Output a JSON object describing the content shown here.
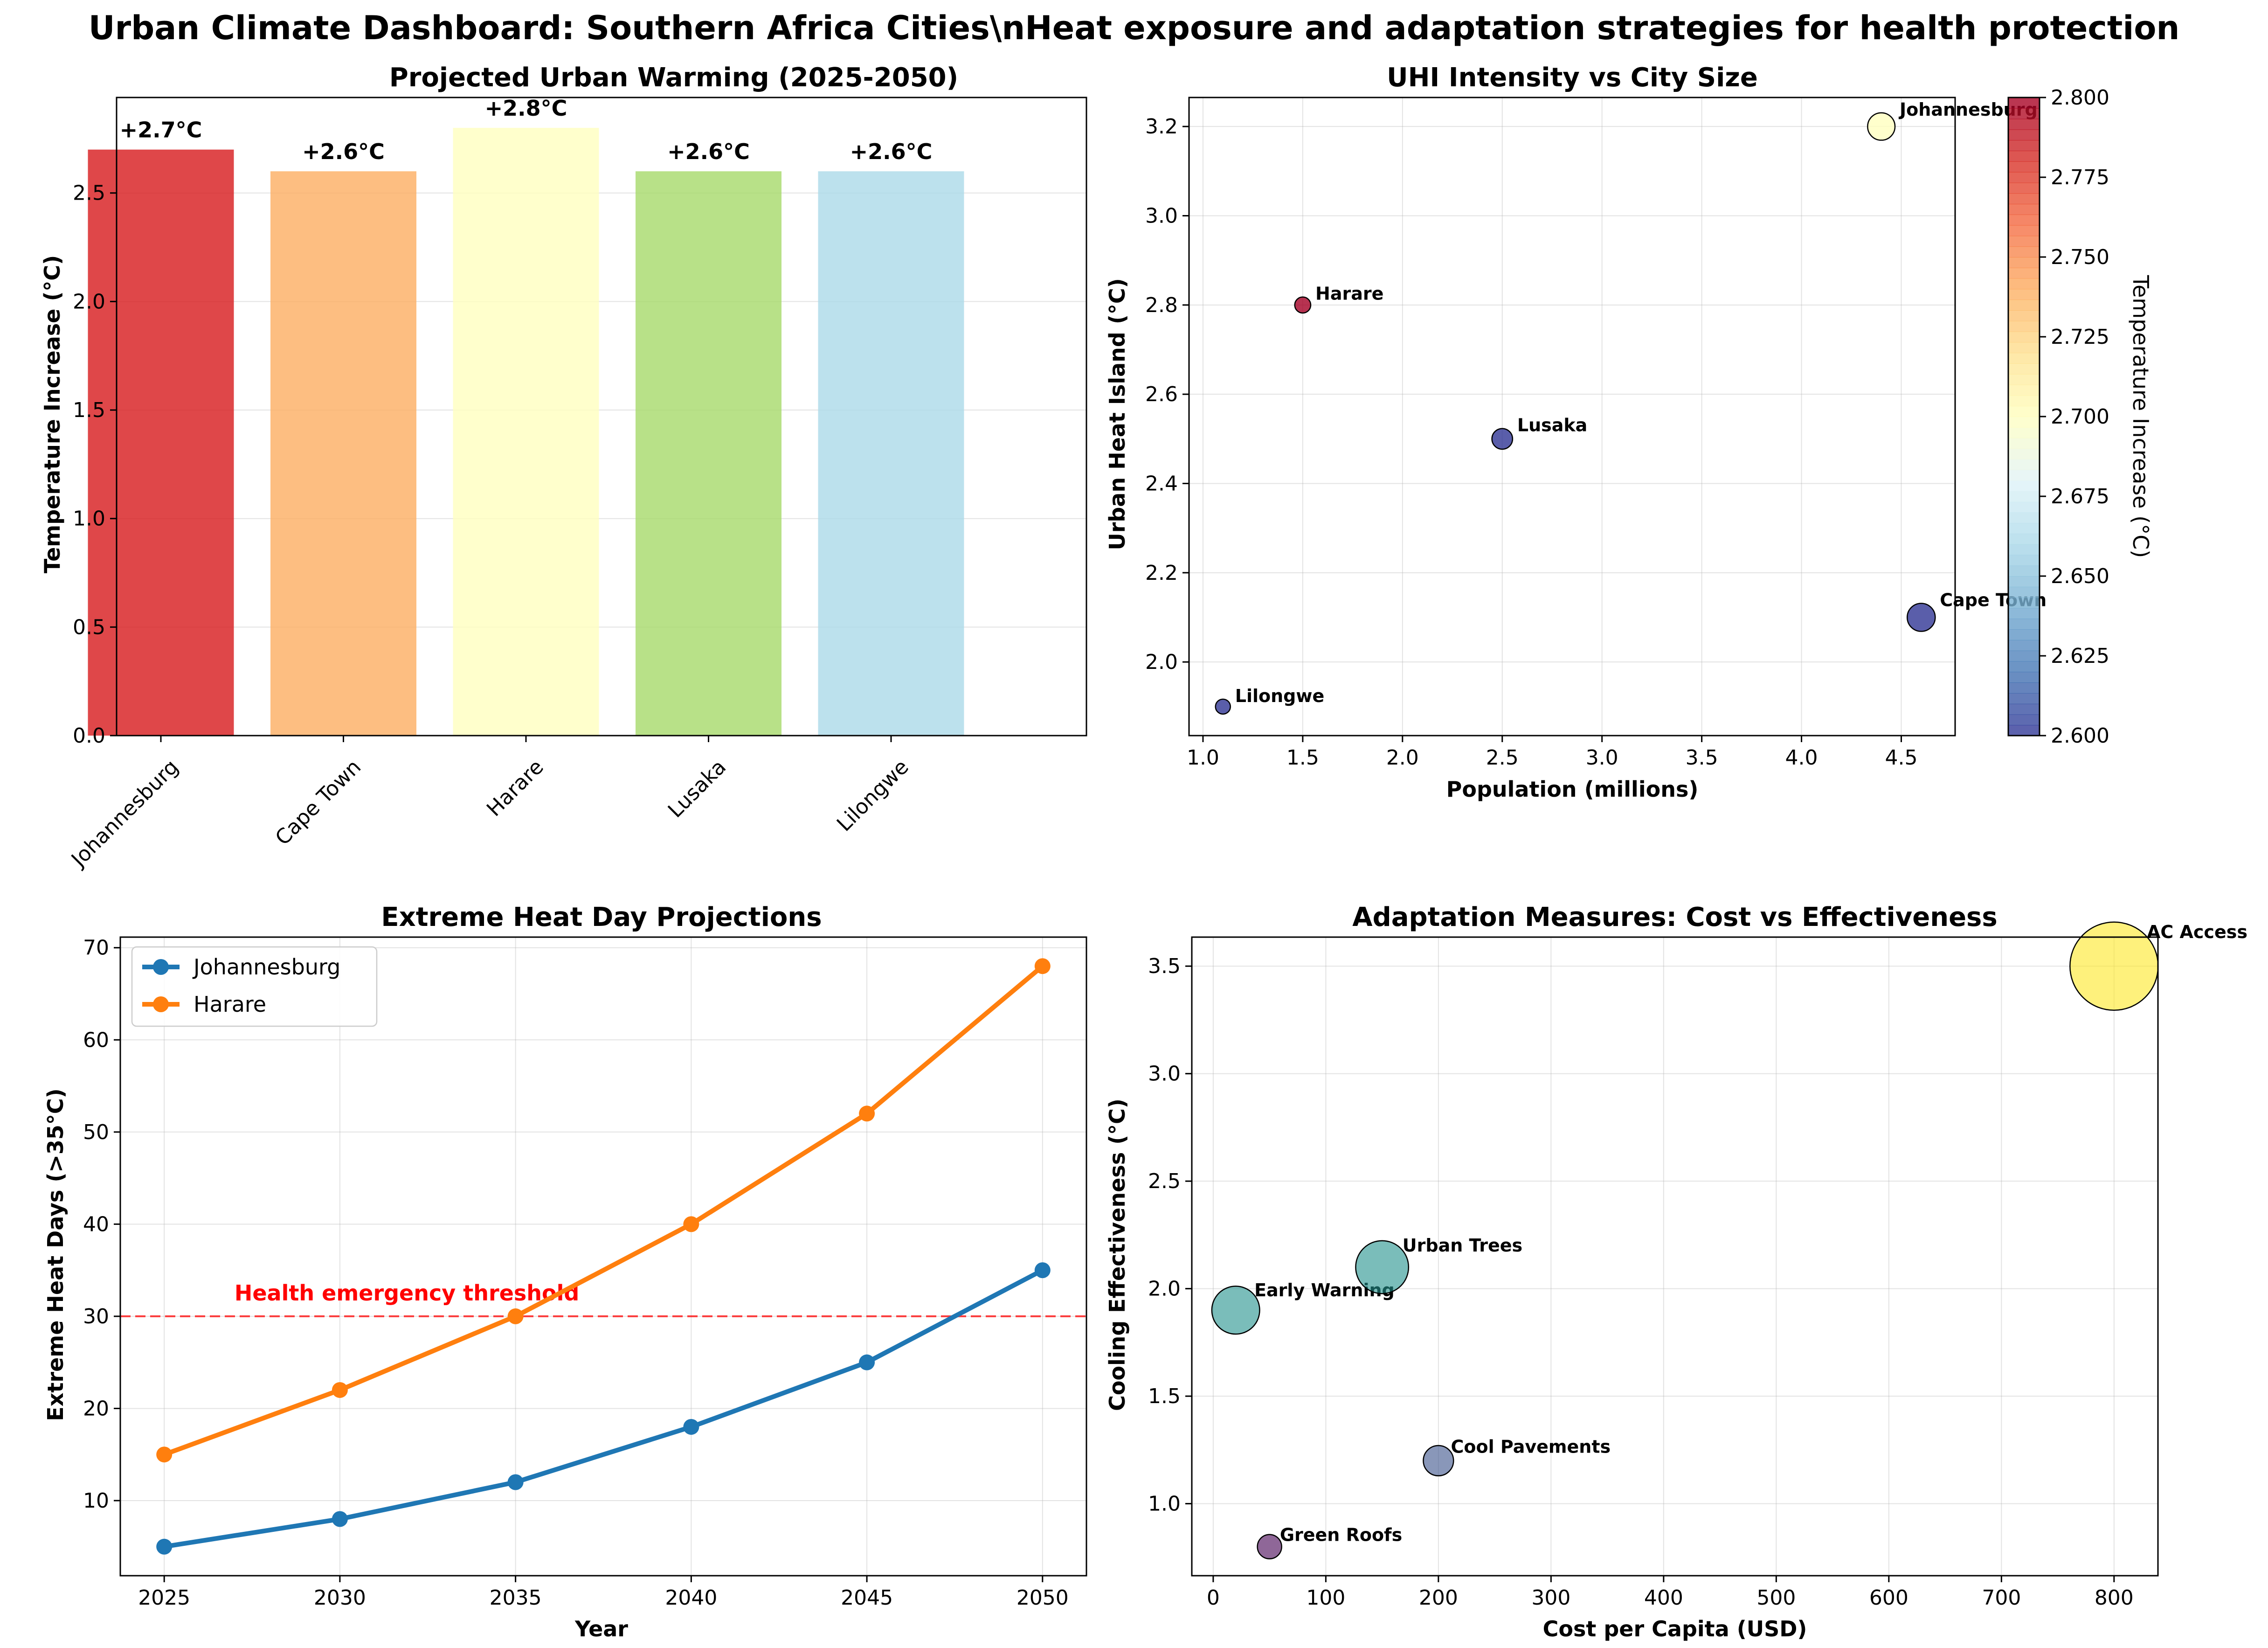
{
  "title": "Urban Climate Dashboard: Southern Africa Cities\\nHeat exposure and adaptation strategies for health protection",
  "chart_data": [
    {
      "type": "bar",
      "title": "Projected Urban Warming (2025-2050)",
      "xlabel": "",
      "ylabel": "Temperature Increase (°C)",
      "categories": [
        "Johannesburg",
        "Cape Town",
        "Harare",
        "Lusaka",
        "Lilongwe"
      ],
      "values": [
        2.7,
        2.6,
        2.8,
        2.6,
        2.6
      ],
      "value_labels": [
        "+2.7°C",
        "+2.6°C",
        "+2.8°C",
        "+2.6°C",
        "+2.6°C"
      ],
      "colors": [
        "#d7191c",
        "#fdae61",
        "#ffffbf",
        "#a6d96a",
        "#abd9e9"
      ],
      "ylim": [
        0,
        2.94
      ],
      "yticks": [
        0.0,
        0.5,
        1.0,
        1.5,
        2.0,
        2.5
      ],
      "ytick_labels": [
        "0.0",
        "0.5",
        "1.0",
        "1.5",
        "2.0",
        "2.5"
      ],
      "grid": "y"
    },
    {
      "type": "scatter",
      "title": "UHI Intensity vs City Size",
      "xlabel": "Population (millions)",
      "ylabel": "Urban Heat Island (°C)",
      "colorbar_label": "Temperature Increase (°C)",
      "points": [
        {
          "label": "Johannesburg",
          "x": 4.4,
          "y": 3.2,
          "c": 2.7
        },
        {
          "label": "Cape Town",
          "x": 4.6,
          "y": 2.1,
          "c": 2.6
        },
        {
          "label": "Harare",
          "x": 1.5,
          "y": 2.8,
          "c": 2.8
        },
        {
          "label": "Lusaka",
          "x": 2.5,
          "y": 2.5,
          "c": 2.6
        },
        {
          "label": "Lilongwe",
          "x": 1.1,
          "y": 1.9,
          "c": 2.6
        }
      ],
      "xlim": [
        0.93,
        4.77
      ],
      "ylim": [
        1.835,
        3.265
      ],
      "xticks": [
        1.0,
        1.5,
        2.0,
        2.5,
        3.0,
        3.5,
        4.0,
        4.5
      ],
      "xtick_labels": [
        "1.0",
        "1.5",
        "2.0",
        "2.5",
        "3.0",
        "3.5",
        "4.0",
        "4.5"
      ],
      "yticks": [
        2.0,
        2.2,
        2.4,
        2.6,
        2.8,
        3.0,
        3.2
      ],
      "ytick_labels": [
        "2.0",
        "2.2",
        "2.4",
        "2.6",
        "2.8",
        "3.0",
        "3.2"
      ],
      "colorbar_range": [
        2.6,
        2.8
      ],
      "colorbar_ticks": [
        2.6,
        2.625,
        2.65,
        2.675,
        2.7,
        2.725,
        2.75,
        2.775,
        2.8
      ],
      "colorbar_tick_labels": [
        "2.600",
        "2.625",
        "2.650",
        "2.675",
        "2.700",
        "2.725",
        "2.750",
        "2.775",
        "2.800"
      ],
      "colormap": "RdYlBu_r",
      "grid": "both"
    },
    {
      "type": "line",
      "title": "Extreme Heat Day Projections",
      "xlabel": "Year",
      "ylabel": "Extreme Heat Days (>35°C)",
      "x": [
        2025,
        2030,
        2035,
        2040,
        2045,
        2050
      ],
      "series": [
        {
          "name": "Johannesburg",
          "values": [
            5,
            8,
            12,
            18,
            25,
            35
          ],
          "color": "#1f77b4"
        },
        {
          "name": "Harare",
          "values": [
            15,
            22,
            30,
            40,
            52,
            68
          ],
          "color": "#ff7f0e"
        }
      ],
      "threshold": {
        "value": 30,
        "label": "Health emergency threshold",
        "color": "#ff0000"
      },
      "xlim": [
        2023.75,
        2051.25
      ],
      "ylim": [
        1.85,
        71.15
      ],
      "xticks": [
        2025,
        2030,
        2035,
        2040,
        2045,
        2050
      ],
      "xtick_labels": [
        "2025",
        "2030",
        "2035",
        "2040",
        "2045",
        "2050"
      ],
      "yticks": [
        10,
        20,
        30,
        40,
        50,
        60,
        70
      ],
      "ytick_labels": [
        "10",
        "20",
        "30",
        "40",
        "50",
        "60",
        "70"
      ],
      "legend": "top-left",
      "grid": "both"
    },
    {
      "type": "scatter",
      "title": "Adaptation Measures: Cost vs Effectiveness",
      "xlabel": "Cost per Capita (USD)",
      "ylabel": "Cooling Effectiveness (°C)",
      "points": [
        {
          "label": "Green Roofs",
          "x": 50,
          "y": 0.8,
          "color": "#440154"
        },
        {
          "label": "Cool Pavements",
          "x": 200,
          "y": 1.2,
          "color": "#3b528b"
        },
        {
          "label": "Early Warning",
          "x": 20,
          "y": 1.9,
          "color": "#21918c"
        },
        {
          "label": "Urban Trees",
          "x": 150,
          "y": 2.1,
          "color": "#21918c"
        },
        {
          "label": "AC Access",
          "x": 800,
          "y": 3.5,
          "color": "#fde725"
        }
      ],
      "xlim": [
        -19,
        839
      ],
      "ylim": [
        0.665,
        3.635
      ],
      "xticks": [
        0,
        100,
        200,
        300,
        400,
        500,
        600,
        700,
        800
      ],
      "xtick_labels": [
        "0",
        "100",
        "200",
        "300",
        "400",
        "500",
        "600",
        "700",
        "800"
      ],
      "yticks": [
        1.0,
        1.5,
        2.0,
        2.5,
        3.0,
        3.5
      ],
      "ytick_labels": [
        "1.0",
        "1.5",
        "2.0",
        "2.5",
        "3.0",
        "3.5"
      ],
      "grid": "both"
    }
  ]
}
